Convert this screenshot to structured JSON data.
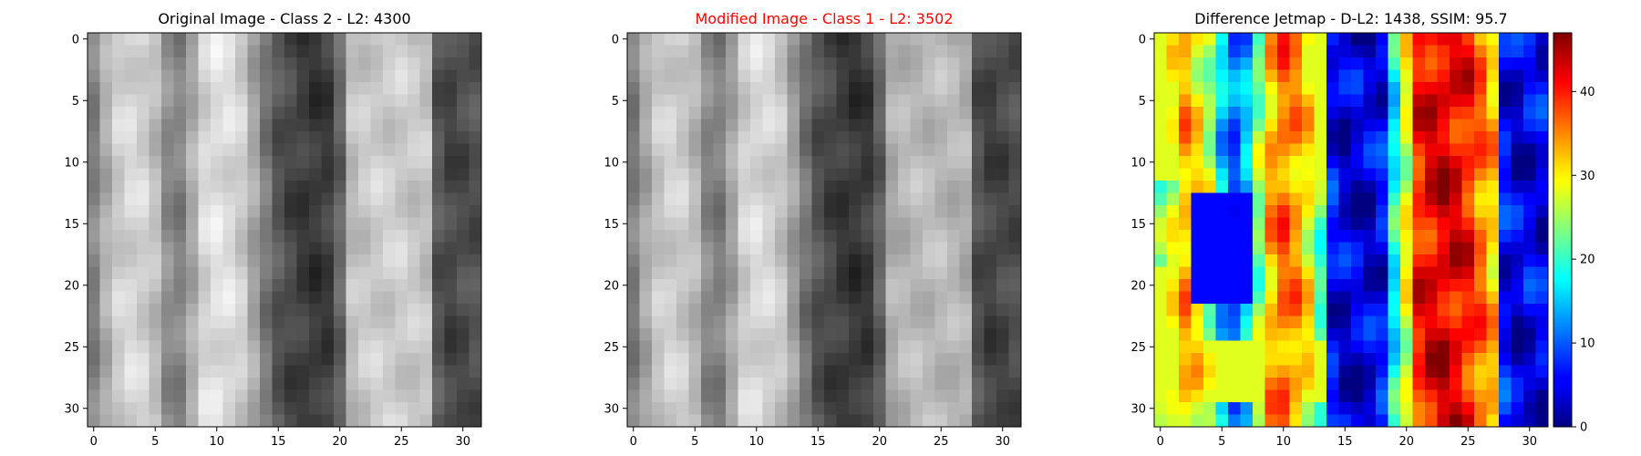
{
  "chart_data": [
    {
      "type": "heatmap",
      "colormap": "gray",
      "title": "Original Image - Class 2 - L2: 4300",
      "title_color": "#000000",
      "x_ticks": [
        0,
        5,
        10,
        15,
        20,
        25,
        30
      ],
      "y_ticks": [
        0,
        5,
        10,
        15,
        20,
        25,
        30
      ],
      "xlim": [
        -0.5,
        31.5
      ],
      "ylim": [
        31.5,
        -0.5
      ],
      "value_range": [
        0,
        255
      ],
      "column_profile": [
        130,
        175,
        205,
        215,
        210,
        190,
        140,
        130,
        170,
        215,
        225,
        220,
        205,
        165,
        120,
        85,
        70,
        60,
        55,
        60,
        100,
        190,
        200,
        205,
        205,
        205,
        200,
        195,
        85,
        70,
        75,
        80
      ],
      "matrix_rows": 32,
      "matrix_cols": 32
    },
    {
      "type": "heatmap",
      "colormap": "gray",
      "title": "Modified Image - Class 1 - L2: 3502",
      "title_color": "#ff0000",
      "x_ticks": [
        0,
        5,
        10,
        15,
        20,
        25,
        30
      ],
      "y_ticks": [
        0,
        5,
        10,
        15,
        20,
        25,
        30
      ],
      "xlim": [
        -0.5,
        31.5
      ],
      "ylim": [
        31.5,
        -0.5
      ],
      "value_range": [
        0,
        255
      ],
      "column_profile": [
        125,
        168,
        198,
        208,
        203,
        184,
        135,
        126,
        163,
        208,
        218,
        212,
        198,
        158,
        115,
        82,
        68,
        58,
        53,
        58,
        96,
        172,
        182,
        186,
        186,
        186,
        182,
        176,
        80,
        66,
        70,
        76
      ],
      "matrix_rows": 32,
      "matrix_cols": 32
    },
    {
      "type": "heatmap",
      "colormap": "jet",
      "title": "Difference Jetmap - D-L2: 1438, SSIM: 95.7",
      "title_color": "#000000",
      "x_ticks": [
        0,
        5,
        10,
        15,
        20,
        25,
        30
      ],
      "y_ticks": [
        0,
        5,
        10,
        15,
        20,
        25,
        30
      ],
      "xlim": [
        -0.5,
        31.5
      ],
      "ylim": [
        31.5,
        -0.5
      ],
      "value_range": [
        0,
        47
      ],
      "colorbar_ticks": [
        0,
        10,
        20,
        30,
        40
      ],
      "column_profile": [
        22,
        28,
        33,
        30,
        26,
        16,
        10,
        14,
        24,
        33,
        36,
        34,
        30,
        22,
        6,
        4,
        4,
        4,
        6,
        18,
        28,
        40,
        42,
        43,
        42,
        40,
        36,
        32,
        6,
        4,
        5,
        5
      ],
      "matrix_rows": 32,
      "matrix_cols": 32
    }
  ]
}
